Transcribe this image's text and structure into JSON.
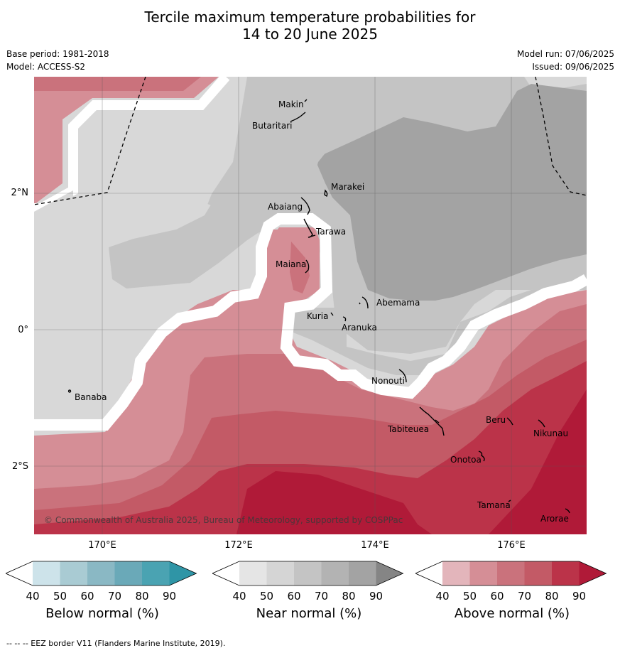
{
  "title_line1": "Tercile maximum temperature probabilities for",
  "title_line2": "14 to 20 June 2025",
  "base_period": "Base period: 1981-2018",
  "model": "Model: ACCESS-S2",
  "model_run": "Model run: 07/06/2025",
  "issued": "Issued: 09/06/2025",
  "copyright": "© Commonwealth of Australia 2025, Bureau of Meteorology, supported by COSPPac",
  "lat_labels": [
    "2°N",
    "0°",
    "2°S"
  ],
  "lon_labels": [
    "170°E",
    "172°E",
    "174°E",
    "176°E"
  ],
  "places": {
    "makin": "Makin",
    "butaritari": "Butaritari",
    "marakei": "Marakei",
    "abaiang": "Abaiang",
    "tarawa": "Tarawa",
    "maiana": "Maiana",
    "abemama": "Abemama",
    "kuria": "Kuria",
    "aranuka": "Aranuka",
    "nonouti": "Nonouti",
    "banaba": "Banaba",
    "tabiteuea": "Tabiteuea",
    "beru": "Beru",
    "nikunau": "Nikunau",
    "onotoa": "Onotoa",
    "tamana": "Tamana",
    "arorae": "Arorae"
  },
  "colorbars": [
    {
      "title": "Below normal (%)",
      "ticks": [
        "40",
        "50",
        "60",
        "70",
        "80",
        "90"
      ],
      "colors": [
        "#ffffff",
        "#cde3ea",
        "#a9cbd3",
        "#8ab8c4",
        "#6aa9b8",
        "#4aa3b2",
        "#2f95a6"
      ]
    },
    {
      "title": "Near normal (%)",
      "ticks": [
        "40",
        "50",
        "60",
        "70",
        "80",
        "90"
      ],
      "colors": [
        "#ffffff",
        "#e5e5e5",
        "#d5d5d5",
        "#c4c4c4",
        "#b3b3b3",
        "#a3a3a3",
        "#858585"
      ]
    },
    {
      "title": "Above normal (%)",
      "ticks": [
        "40",
        "50",
        "60",
        "70",
        "80",
        "90"
      ],
      "colors": [
        "#ffffff",
        "#e3b5bb",
        "#d58e96",
        "#ca727c",
        "#c35a66",
        "#bb3349",
        "#b01a38"
      ]
    }
  ],
  "footer": "--  --  -- EEZ border V11 (Flanders Marine Institute, 2019)."
}
